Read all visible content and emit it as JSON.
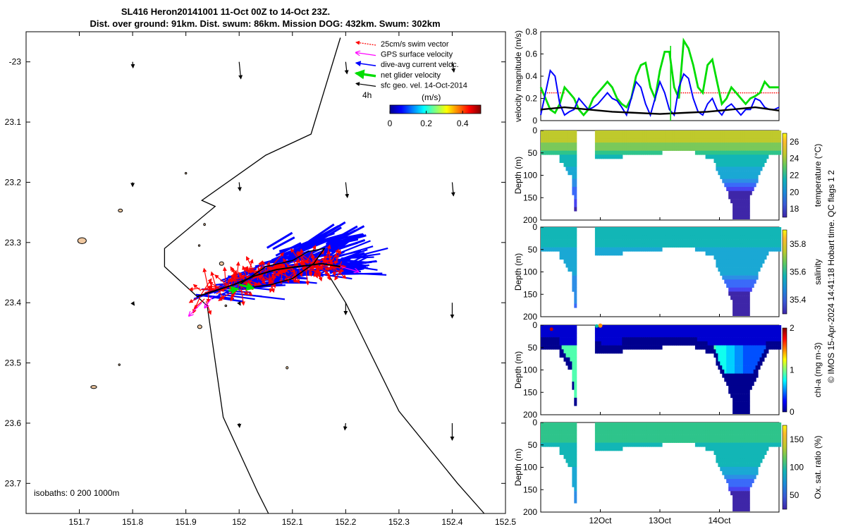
{
  "title": {
    "line1": "SL416 Heron20141001 11-Oct 00Z to 14-Oct 23Z.",
    "line2": "Dist. over ground: 91km. Dist. swum: 86km. Mission DOG: 432km. Swum: 302km"
  },
  "side_note": "© IMOS 15-Apr-2024 14:41:18 Hobart time. QC flags 1  2",
  "colors": {
    "swim": "#ff0000",
    "gps": "#ff00ff",
    "current": "#0000ff",
    "net": "#00dd00",
    "geo": "#000000",
    "land": "#f0c8a0"
  },
  "chart_data": [
    {
      "type": "map",
      "name": "track-map",
      "xlim": [
        151.6,
        152.5
      ],
      "ylim": [
        -23.75,
        -22.95
      ],
      "xticks": [
        151.7,
        151.8,
        151.9,
        152,
        152.1,
        152.2,
        152.3,
        152.4,
        152.5
      ],
      "xtick_labels": [
        "151.7",
        "151.8",
        "151.9",
        "152",
        "152.1",
        "152.2",
        "152.3",
        "152.4",
        "152.5"
      ],
      "yticks": [
        -23.0,
        -23.1,
        -23.2,
        -23.3,
        -23.4,
        -23.5,
        -23.6,
        -23.7
      ],
      "ytick_labels": [
        "-23",
        "23.1",
        "23.2",
        "23.3",
        "23.4",
        "23.5",
        "23.6",
        "23.7"
      ],
      "legend": [
        {
          "key": "swim",
          "label": "25cm/s swim vector"
        },
        {
          "key": "gps",
          "label": "GPS surface velocity"
        },
        {
          "key": "current",
          "label": "dive-avg current veloc."
        },
        {
          "key": "net",
          "label": "net glider velocity"
        },
        {
          "key": "geo",
          "label": "sfc geo. vel. 14-Oct-2014"
        }
      ],
      "legend_placement": "top-right",
      "colorbar": {
        "label": "(m/s)",
        "prefix": "4h",
        "range": [
          0,
          0.5
        ],
        "ticks": [
          0,
          0.2,
          0.4
        ],
        "tick_labels": [
          "0",
          "0.2",
          "0.4"
        ],
        "colormap": "jet"
      },
      "isobath_text": "isobaths: 0   200  1000m",
      "isobath": [
        [
          152.19,
          -22.96
        ],
        [
          152.135,
          -23.12
        ],
        [
          152.05,
          -23.155
        ],
        [
          151.93,
          -23.23
        ],
        [
          151.955,
          -23.24
        ],
        [
          151.86,
          -23.31
        ],
        [
          151.86,
          -23.34
        ],
        [
          151.94,
          -23.405
        ],
        [
          151.97,
          -23.59
        ],
        [
          152.035,
          -23.715
        ],
        [
          152.055,
          -23.75
        ]
      ],
      "shelf_edge": [
        [
          152.165,
          -23.35
        ],
        [
          152.2,
          -23.4
        ],
        [
          152.3,
          -23.58
        ],
        [
          152.41,
          -23.7
        ],
        [
          152.46,
          -23.75
        ]
      ],
      "glider_track": [
        [
          151.92,
          -23.39
        ],
        [
          151.99,
          -23.37
        ],
        [
          152.03,
          -23.355
        ],
        [
          152.07,
          -23.345
        ],
        [
          152.11,
          -23.34
        ],
        [
          152.155,
          -23.335
        ],
        [
          152.19,
          -23.34
        ]
      ],
      "track_loop": [
        [
          152.0,
          -23.37
        ],
        [
          152.05,
          -23.34
        ],
        [
          152.1,
          -23.33
        ],
        [
          152.13,
          -23.315
        ],
        [
          152.16,
          -23.31
        ],
        [
          152.14,
          -23.335
        ],
        [
          152.1,
          -23.36
        ],
        [
          152.06,
          -23.37
        ],
        [
          152.02,
          -23.375
        ]
      ],
      "geo_vectors": [
        {
          "lon": 151.8,
          "lat": -23.0,
          "u": 0.01,
          "v": -0.07
        },
        {
          "lon": 152.0,
          "lat": -23.0,
          "u": 0.04,
          "v": -0.2
        },
        {
          "lon": 152.2,
          "lat": -23.0,
          "u": 0.03,
          "v": -0.14
        },
        {
          "lon": 152.4,
          "lat": -23.0,
          "u": 0.04,
          "v": -0.12
        },
        {
          "lon": 151.8,
          "lat": -23.2,
          "u": 0.0,
          "v": -0.05
        },
        {
          "lon": 152.0,
          "lat": -23.2,
          "u": 0.02,
          "v": -0.1
        },
        {
          "lon": 152.2,
          "lat": -23.2,
          "u": 0.04,
          "v": -0.18
        },
        {
          "lon": 152.4,
          "lat": -23.2,
          "u": 0.03,
          "v": -0.16
        },
        {
          "lon": 151.8,
          "lat": -23.4,
          "u": 0.04,
          "v": -0.03
        },
        {
          "lon": 152.0,
          "lat": -23.4,
          "u": 0.03,
          "v": -0.03
        },
        {
          "lon": 152.2,
          "lat": -23.4,
          "u": 0.0,
          "v": -0.14
        },
        {
          "lon": 152.4,
          "lat": -23.4,
          "u": 0.0,
          "v": -0.18
        },
        {
          "lon": 152.0,
          "lat": -23.6,
          "u": 0.01,
          "v": -0.05
        },
        {
          "lon": 152.2,
          "lat": -23.6,
          "u": -0.02,
          "v": -0.08
        },
        {
          "lon": 152.4,
          "lat": -23.6,
          "u": 0.0,
          "v": -0.2
        }
      ],
      "gps_vectors": [
        {
          "lon": 152.19,
          "lat": -23.34,
          "u": 0.28,
          "v": -0.07
        },
        {
          "lon": 151.93,
          "lat": -23.4,
          "u": -0.2,
          "v": -0.18
        },
        {
          "lon": 151.95,
          "lat": -23.39,
          "u": -0.12,
          "v": -0.15
        }
      ],
      "net_vectors": [
        {
          "lon": 152.0,
          "lat": -23.37,
          "u": 0.18,
          "v": -0.04
        },
        {
          "lon": 151.98,
          "lat": -23.38,
          "u": 0.12,
          "v": 0.02
        }
      ],
      "islands": [
        {
          "lon": 151.705,
          "lat": -23.297,
          "rx": 0.008,
          "ry": 0.005
        },
        {
          "lon": 151.777,
          "lat": -23.247,
          "rx": 0.004,
          "ry": 0.0025
        },
        {
          "lon": 151.967,
          "lat": -23.335,
          "rx": 0.004,
          "ry": 0.003
        },
        {
          "lon": 151.926,
          "lat": -23.44,
          "rx": 0.004,
          "ry": 0.003
        },
        {
          "lon": 151.727,
          "lat": -23.54,
          "rx": 0.0055,
          "ry": 0.0025
        },
        {
          "lon": 152.09,
          "lat": -23.508,
          "rx": 0.002,
          "ry": 0.002
        },
        {
          "lon": 151.935,
          "lat": -23.27,
          "rx": 0.0017,
          "ry": 0.0017
        },
        {
          "lon": 151.9,
          "lat": -23.185,
          "rx": 0.0015,
          "ry": 0.0015
        },
        {
          "lon": 151.975,
          "lat": -23.405,
          "rx": 0.0017,
          "ry": 0.0012
        },
        {
          "lon": 151.775,
          "lat": -23.503,
          "rx": 0.0013,
          "ry": 0.0013
        },
        {
          "lon": 151.925,
          "lat": -23.305,
          "rx": 0.0013,
          "ry": 0.0013
        }
      ]
    },
    {
      "type": "line",
      "name": "velocity-panel",
      "ylabel": "velocity magnitude (m/s)",
      "xlim": [
        0,
        100
      ],
      "ylim": [
        0,
        0.8
      ],
      "yticks": [
        0,
        0.2,
        0.4,
        0.6,
        0.8
      ],
      "ytick_labels": [
        "0",
        "0.2",
        "0.4",
        "0.6",
        "0.8"
      ],
      "series": [
        {
          "name": "swim",
          "key": "swim",
          "style": "dotted",
          "x": [
            0,
            8,
            10,
            20,
            60,
            100
          ],
          "y": [
            0.25,
            0.25,
            0.25,
            0.25,
            0.25,
            0.25
          ],
          "segments": [
            [
              0,
              10
            ],
            [
              57,
              100
            ]
          ]
        },
        {
          "name": "net",
          "key": "net",
          "x": [
            0,
            2,
            4,
            6,
            8,
            10,
            12,
            14,
            16,
            18,
            20,
            22,
            24,
            26,
            28,
            30,
            32,
            34,
            36,
            38,
            40,
            42,
            44,
            46,
            48,
            50,
            52,
            54,
            56,
            58,
            60,
            62,
            64,
            66,
            68,
            70,
            72,
            74,
            76,
            78,
            80,
            82,
            84,
            86,
            88,
            90,
            92,
            94,
            96,
            98,
            100
          ],
          "y": [
            0.3,
            0.2,
            0.1,
            0.07,
            0.15,
            0.3,
            0.25,
            0.2,
            0.1,
            0.05,
            0.1,
            0.2,
            0.25,
            0.3,
            0.35,
            0.3,
            0.2,
            0.15,
            0.12,
            0.2,
            0.4,
            0.5,
            0.52,
            0.3,
            0.2,
            0.45,
            0.62,
            0.62,
            0.3,
            0.2,
            0.72,
            0.65,
            0.5,
            0.3,
            0.25,
            0.5,
            0.55,
            0.35,
            0.15,
            0.2,
            0.3,
            0.25,
            0.2,
            0.15,
            0.2,
            0.22,
            0.25,
            0.35,
            0.3,
            0.3,
            0.3
          ]
        },
        {
          "name": "current",
          "key": "current",
          "x": [
            0,
            2,
            4,
            6,
            8,
            10,
            12,
            14,
            16,
            18,
            20,
            22,
            24,
            26,
            28,
            30,
            32,
            34,
            36,
            38,
            40,
            42,
            44,
            46,
            48,
            50,
            52,
            54,
            56,
            58,
            60,
            62,
            64,
            66,
            68,
            70,
            72,
            74,
            76,
            78,
            80,
            82,
            84,
            86,
            88,
            90,
            92,
            94,
            96,
            98,
            100
          ],
          "y": [
            0.05,
            0.25,
            0.45,
            0.4,
            0.15,
            0.05,
            0.08,
            0.1,
            0.2,
            0.15,
            0.1,
            0.12,
            0.15,
            0.2,
            0.25,
            0.2,
            0.18,
            0.12,
            0.05,
            0.2,
            0.35,
            0.3,
            0.15,
            0.05,
            0.2,
            0.35,
            0.25,
            0.1,
            0.05,
            0.3,
            0.42,
            0.38,
            0.2,
            0.08,
            0.05,
            0.15,
            0.2,
            0.1,
            0.05,
            0.12,
            0.15,
            0.1,
            0.05,
            0.1,
            0.1,
            0.2,
            0.18,
            0.12,
            0.1,
            0.1,
            0.12
          ]
        },
        {
          "name": "geo",
          "key": "geo",
          "x": [
            0,
            10,
            20,
            30,
            40,
            50,
            60,
            70,
            80,
            90,
            100
          ],
          "y": [
            0.1,
            0.12,
            0.1,
            0.08,
            0.07,
            0.06,
            0.07,
            0.08,
            0.1,
            0.12,
            0.09
          ]
        }
      ]
    },
    {
      "type": "heatmap",
      "name": "temperature",
      "xlabel": "",
      "ylabel": "Depth (m)",
      "cbar_label": "temperature (°C)",
      "range": [
        17,
        27
      ],
      "cbar_ticks": [
        18,
        20,
        22,
        24,
        26
      ],
      "cbar_labels": [
        "18",
        "20",
        "22",
        "24",
        "26"
      ],
      "surface": 0.65,
      "mid": 0.55,
      "deep": 0.1,
      "bloom": false,
      "red_spots": false
    },
    {
      "type": "heatmap",
      "name": "salinity",
      "xlabel": "",
      "ylabel": "Depth (m)",
      "cbar_label": "salinity",
      "range": [
        35.3,
        35.9
      ],
      "cbar_ticks": [
        35.4,
        35.6,
        35.8
      ],
      "cbar_labels": [
        "35.4",
        "35.6",
        "35.8"
      ],
      "surface": 0.45,
      "mid": 0.42,
      "deep": 0.25,
      "bloom": false,
      "red_spots": false
    },
    {
      "type": "heatmap",
      "name": "chl-a",
      "xlabel": "",
      "ylabel": "Depth (m)",
      "cbar_label": "chl-a (mg m-3)",
      "range": [
        0,
        2
      ],
      "cbar_ticks": [
        0,
        1,
        2
      ],
      "cbar_labels": [
        "0",
        "1",
        "2"
      ],
      "surface": 0.15,
      "mid": 0.4,
      "deep": 0.05,
      "bloom": true,
      "red_spots": true
    },
    {
      "type": "heatmap",
      "name": "oxygen",
      "xlabel": "",
      "ylabel": "Depth (m)",
      "cbar_label": "Ox. sat. ratio (%)",
      "range": [
        25,
        175
      ],
      "cbar_ticks": [
        50,
        100,
        150
      ],
      "cbar_labels": [
        "50",
        "100",
        "150"
      ],
      "surface": 0.5,
      "mid": 0.5,
      "deep": 0.3,
      "bloom": false,
      "red_spots": false,
      "xtick_labels": [
        "12Oct",
        "13Oct",
        "14Oct"
      ]
    }
  ],
  "depth_ticks": [
    0,
    50,
    100,
    150,
    200
  ],
  "depth_tick_labels": [
    "0",
    "50",
    "100",
    "150",
    "200"
  ],
  "time_ticks": [
    1,
    2,
    3
  ],
  "time_range": [
    0.0,
    4.0
  ],
  "data_gaps": [
    [
      0.58,
      0.9
    ]
  ],
  "time_labels": [
    "12Oct",
    "13Oct",
    "14Oct"
  ]
}
